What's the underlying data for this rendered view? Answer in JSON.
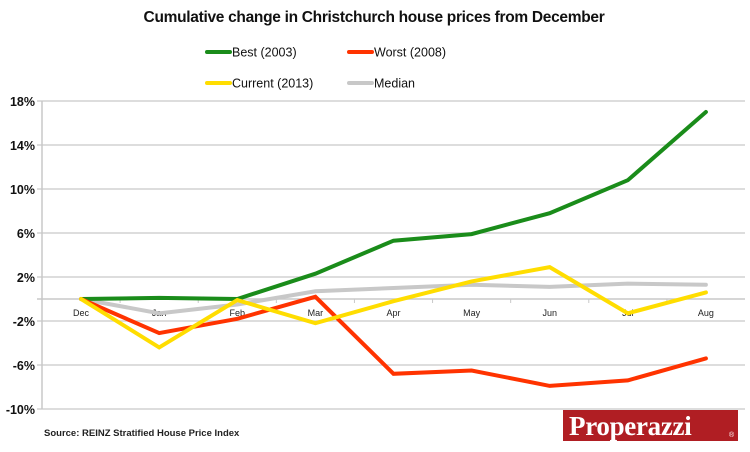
{
  "chart_data": {
    "type": "line",
    "title": "Cumulative change in Christchurch house prices from December",
    "xlabel": "",
    "ylabel": "",
    "categories": [
      "Dec",
      "Jan",
      "Feb",
      "Mar",
      "Apr",
      "May",
      "Jun",
      "Jul",
      "Aug"
    ],
    "y_ticks": [
      18,
      14,
      10,
      6,
      2,
      -2,
      -6,
      -10
    ],
    "y_tick_labels": [
      "18%",
      "14%",
      "10%",
      "6%",
      "2%",
      "-2%",
      "-6%",
      "-10%"
    ],
    "ylim": [
      -10,
      18
    ],
    "grid": true,
    "legend_position": "top-center",
    "series": [
      {
        "name": "Best (2003)",
        "color": "#1a8c1a",
        "values": [
          0,
          0.1,
          0.0,
          2.3,
          5.3,
          5.9,
          7.8,
          10.8,
          17.0
        ]
      },
      {
        "name": "Worst (2008)",
        "color": "#ff3300",
        "values": [
          0,
          -3.1,
          -1.8,
          0.2,
          -6.8,
          -6.5,
          -7.9,
          -7.4,
          -5.4
        ]
      },
      {
        "name": "Current (2013)",
        "color": "#ffdd00",
        "values": [
          0,
          -4.4,
          -0.1,
          -2.2,
          -0.2,
          1.6,
          2.9,
          -1.3,
          0.6
        ]
      },
      {
        "name": "Median",
        "color": "#c8c8c8",
        "values": [
          0,
          -1.3,
          -0.5,
          0.7,
          1.0,
          1.3,
          1.1,
          1.4,
          1.3
        ]
      }
    ],
    "source": "Source: REINZ Stratified House Price Index"
  },
  "branding": {
    "logo_text": "Properazzi",
    "logo_mark": "®",
    "logo_color": "#b01e23"
  }
}
